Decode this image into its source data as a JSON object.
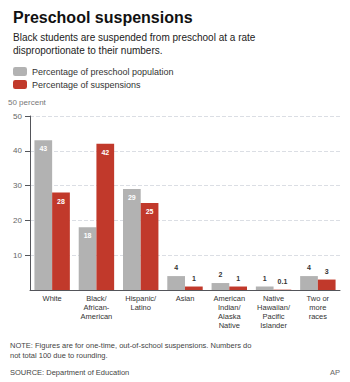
{
  "chart_data": {
    "type": "bar",
    "title": "Preschool suspensions",
    "subtitle": "Black students are suspended from preschool at a rate\ndisproportionate to their numbers.",
    "ylabel": "50 percent",
    "categories": [
      "White",
      "Black/\nAfrican-\nAmerican",
      "Hispanic/\nLatino",
      "Asian",
      "American\nIndian/\nAlaska\nNative",
      "Native\nHawaiian/\nPacific\nIslander",
      "Two or\nmore\nraces"
    ],
    "series": [
      {
        "name": "Percentage of preschool population",
        "color": "#b2b2b2",
        "values": [
          43,
          18,
          29,
          4,
          2,
          1,
          4
        ]
      },
      {
        "name": "Percentage of suspensions",
        "color": "#c1392b",
        "values": [
          28,
          42,
          25,
          1,
          1,
          0.1,
          3
        ]
      }
    ],
    "ylim": [
      0,
      50
    ],
    "yticks": [
      10,
      20,
      30,
      40,
      50
    ],
    "grid": true,
    "legend": "top",
    "data_labels": true,
    "annotations": [
      "NOTE: Figures are for one-time, out-of-school suspensions. Numbers do\nnot total 100 due to rounding.",
      "SOURCE: Department of Education",
      "AP"
    ]
  }
}
